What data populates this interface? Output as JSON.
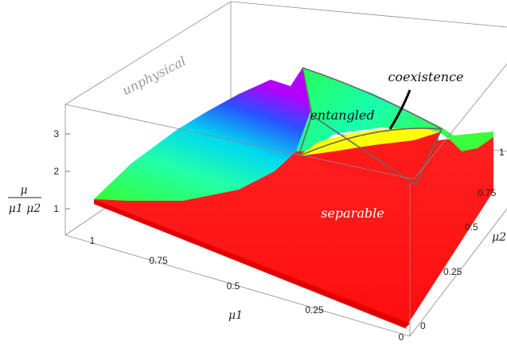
{
  "chart_data": {
    "type": "surface3d",
    "title": "",
    "z_axis": {
      "label_num": "μ",
      "label_den": "μ1 μ2",
      "ticks": [
        "1",
        "2",
        "3"
      ]
    },
    "x_axis": {
      "label": "μ1",
      "ticks": [
        "1",
        "0.75",
        "0.5",
        "0.25",
        "0"
      ]
    },
    "y_axis": {
      "label": "μ2",
      "ticks": [
        "0",
        "0.25",
        "0.5",
        "0.75",
        "1"
      ]
    },
    "regions": [
      {
        "name": "unphysical",
        "color": "#9a9a9a"
      },
      {
        "name": "entangled",
        "color": "#111111"
      },
      {
        "name": "coexistence",
        "color": "#111111"
      },
      {
        "name": "separable",
        "color": "#ffffff"
      }
    ],
    "colors": {
      "separable_surface": "#ff1a1a",
      "coexistence_surface": "#ffff00",
      "entangled_gradient": [
        "#33ff33",
        "#00e0d0",
        "#1a5cff",
        "#b000ff"
      ]
    }
  }
}
